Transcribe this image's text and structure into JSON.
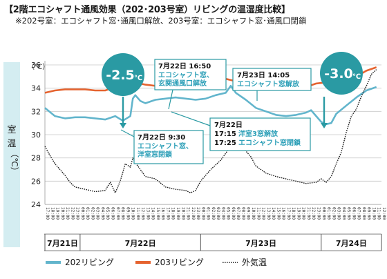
{
  "title": "【2階エコシャフト通風効果（202･203号室）リビングの温湿度比較】",
  "subtitle": "※202号室：エコシャフト窓･通風口解放、203号室：エコシャフト窓･通風口閉鎖",
  "colors": {
    "series_202": "#62b5cc",
    "series_203": "#e5632f",
    "outdoor": "#1a1a1a",
    "accent": "#2a9aa3",
    "ylabel_bg": "#d4edf1"
  },
  "chart_data": {
    "type": "line",
    "ylabel": "室温（℃）",
    "yunit": "（℃）",
    "ylim": [
      24,
      36
    ],
    "yticks": [
      24,
      26,
      28,
      30,
      32,
      34,
      36
    ],
    "x_start_hour": 17,
    "x_hours": 67,
    "day_labels": [
      {
        "label": "7月21日",
        "from": 0,
        "to": 7
      },
      {
        "label": "7月22日",
        "from": 7,
        "to": 31
      },
      {
        "label": "7月23日",
        "from": 31,
        "to": 55
      },
      {
        "label": "7月24日",
        "from": 55,
        "to": 67
      }
    ],
    "series": [
      {
        "name": "202リビング",
        "key": "s202",
        "style": "solid",
        "points": [
          [
            0,
            32.3
          ],
          [
            2,
            31.6
          ],
          [
            4,
            31.4
          ],
          [
            6,
            31.5
          ],
          [
            8,
            31.5
          ],
          [
            10,
            31.4
          ],
          [
            12,
            31.3
          ],
          [
            14,
            31.6
          ],
          [
            15.5,
            31.2
          ],
          [
            17,
            31.6
          ],
          [
            17.5,
            33.1
          ],
          [
            18,
            33.4
          ],
          [
            19,
            32.9
          ],
          [
            20,
            32.7
          ],
          [
            22,
            33.0
          ],
          [
            24,
            33.1
          ],
          [
            26,
            33.2
          ],
          [
            28,
            33.1
          ],
          [
            30,
            33.0
          ],
          [
            32,
            33.1
          ],
          [
            34,
            33.4
          ],
          [
            36,
            33.6
          ],
          [
            37,
            34.2
          ],
          [
            38,
            33.6
          ],
          [
            40,
            33.0
          ],
          [
            42,
            32.3
          ],
          [
            44,
            32.0
          ],
          [
            46,
            31.7
          ],
          [
            48,
            31.6
          ],
          [
            50,
            31.7
          ],
          [
            52,
            31.9
          ],
          [
            53,
            32.1
          ],
          [
            54,
            31.6
          ],
          [
            55,
            31.1
          ],
          [
            56,
            30.9
          ],
          [
            57,
            31.0
          ],
          [
            58,
            31.8
          ],
          [
            60,
            32.5
          ],
          [
            62,
            33.2
          ],
          [
            64,
            33.8
          ],
          [
            66,
            34.1
          ]
        ]
      },
      {
        "name": "203リビング",
        "key": "s203",
        "style": "solid",
        "points": [
          [
            0,
            33.6
          ],
          [
            2,
            33.8
          ],
          [
            4,
            33.9
          ],
          [
            6,
            33.9
          ],
          [
            8,
            33.9
          ],
          [
            10,
            33.8
          ],
          [
            12,
            33.8
          ],
          [
            14,
            34.1
          ],
          [
            16,
            34.5
          ],
          [
            17,
            34.2
          ],
          [
            18,
            34.5
          ],
          [
            20,
            34.3
          ],
          [
            22,
            34.2
          ],
          [
            24,
            34.1
          ],
          [
            26,
            34.0
          ],
          [
            28,
            34.1
          ],
          [
            30,
            34.0
          ],
          [
            32,
            34.3
          ],
          [
            34,
            34.6
          ],
          [
            36,
            34.8
          ],
          [
            38,
            34.6
          ],
          [
            40,
            34.3
          ],
          [
            42,
            34.2
          ],
          [
            44,
            34.2
          ],
          [
            46,
            34.3
          ],
          [
            48,
            34.3
          ],
          [
            50,
            34.3
          ],
          [
            52,
            34.1
          ],
          [
            54,
            34.4
          ],
          [
            56,
            34.5
          ],
          [
            58,
            34.5
          ],
          [
            60,
            34.7
          ],
          [
            62,
            35.0
          ],
          [
            64,
            35.5
          ],
          [
            66,
            35.8
          ]
        ]
      },
      {
        "name": "外気温",
        "key": "outdoor",
        "style": "dotted",
        "points": [
          [
            0,
            29.0
          ],
          [
            1,
            28.2
          ],
          [
            2,
            27.5
          ],
          [
            3,
            27.0
          ],
          [
            4,
            26.5
          ],
          [
            5,
            25.9
          ],
          [
            6,
            25.5
          ],
          [
            8,
            25.3
          ],
          [
            10,
            25.1
          ],
          [
            12,
            25.2
          ],
          [
            13,
            25.9
          ],
          [
            14,
            25.0
          ],
          [
            15,
            26.0
          ],
          [
            16,
            27.5
          ],
          [
            17,
            27.2
          ],
          [
            17.5,
            28.0
          ],
          [
            18,
            27.6
          ],
          [
            19,
            27.0
          ],
          [
            20,
            26.4
          ],
          [
            22,
            26.2
          ],
          [
            24,
            25.5
          ],
          [
            26,
            25.3
          ],
          [
            28,
            25.2
          ],
          [
            29,
            25.0
          ],
          [
            30,
            25.2
          ],
          [
            31,
            26.0
          ],
          [
            33,
            27.0
          ],
          [
            35,
            27.8
          ],
          [
            37,
            29.0
          ],
          [
            38,
            29.5
          ],
          [
            39,
            29.2
          ],
          [
            40,
            28.6
          ],
          [
            41,
            28.1
          ],
          [
            42,
            27.3
          ],
          [
            44,
            26.7
          ],
          [
            46,
            26.4
          ],
          [
            48,
            26.2
          ],
          [
            50,
            26.0
          ],
          [
            52,
            25.8
          ],
          [
            54,
            25.9
          ],
          [
            55,
            26.2
          ],
          [
            56,
            25.9
          ],
          [
            57,
            26.4
          ],
          [
            58,
            27.5
          ],
          [
            59,
            28.5
          ],
          [
            60,
            30.2
          ],
          [
            61,
            31.6
          ],
          [
            62,
            32.2
          ],
          [
            63,
            33.3
          ],
          [
            64,
            34.2
          ],
          [
            65,
            35.2
          ],
          [
            66,
            35.6
          ]
        ]
      }
    ],
    "annotations": [
      {
        "date": "7月22日 16:50",
        "text": "エコシャフト窓、\n玄関通風口解放"
      },
      {
        "date": "7月23日 14:05",
        "text": "エコシャフト窓解放"
      },
      {
        "date": "7月22日 9:30",
        "text": "エコシャフト窓、\n洋室窓閉鎖"
      },
      {
        "date": "7月22日",
        "lines": [
          "17:15 洋室3窓解放",
          "17:25 エコシャフト窓閉鎖"
        ]
      }
    ],
    "badges": [
      {
        "value": "-2.5",
        "unit": "℃"
      },
      {
        "value": "-3.0",
        "unit": "℃"
      }
    ]
  }
}
